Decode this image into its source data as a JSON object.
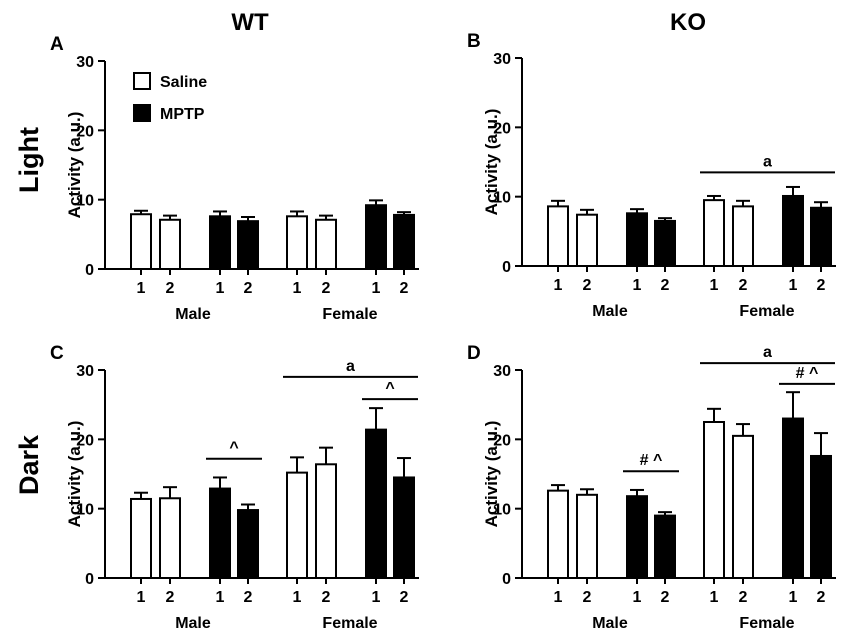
{
  "figure": {
    "column_titles": [
      "WT",
      "KO"
    ],
    "row_titles": [
      "Light",
      "Dark"
    ]
  },
  "legend": {
    "items": [
      {
        "label": "Saline",
        "color": "#ffffff"
      },
      {
        "label": "MPTP",
        "color": "#000000"
      }
    ]
  },
  "chart_data": [
    {
      "panel": "A",
      "type": "bar",
      "genotype": "WT",
      "phase": "Light",
      "ylabel": "Activity (a.u.)",
      "ylim": [
        0,
        30
      ],
      "yticks": [
        0,
        10,
        20,
        30
      ],
      "groups": [
        "Male",
        "Female"
      ],
      "bars": [
        {
          "sex": "Male",
          "treatment": "Saline",
          "day": "1",
          "value": 7.9,
          "err": 0.5
        },
        {
          "sex": "Male",
          "treatment": "Saline",
          "day": "2",
          "value": 7.1,
          "err": 0.6
        },
        {
          "sex": "Male",
          "treatment": "MPTP",
          "day": "1",
          "value": 7.6,
          "err": 0.7
        },
        {
          "sex": "Male",
          "treatment": "MPTP",
          "day": "2",
          "value": 6.9,
          "err": 0.6
        },
        {
          "sex": "Female",
          "treatment": "Saline",
          "day": "1",
          "value": 7.6,
          "err": 0.7
        },
        {
          "sex": "Female",
          "treatment": "Saline",
          "day": "2",
          "value": 7.1,
          "err": 0.6
        },
        {
          "sex": "Female",
          "treatment": "MPTP",
          "day": "1",
          "value": 9.2,
          "err": 0.7
        },
        {
          "sex": "Female",
          "treatment": "MPTP",
          "day": "2",
          "value": 7.8,
          "err": 0.4
        }
      ],
      "annotations": []
    },
    {
      "panel": "B",
      "type": "bar",
      "genotype": "KO",
      "phase": "Light",
      "ylabel": "Activity (a.u.)",
      "ylim": [
        0,
        30
      ],
      "yticks": [
        0,
        10,
        20,
        30
      ],
      "groups": [
        "Male",
        "Female"
      ],
      "bars": [
        {
          "sex": "Male",
          "treatment": "Saline",
          "day": "1",
          "value": 8.6,
          "err": 0.8
        },
        {
          "sex": "Male",
          "treatment": "Saline",
          "day": "2",
          "value": 7.4,
          "err": 0.7
        },
        {
          "sex": "Male",
          "treatment": "MPTP",
          "day": "1",
          "value": 7.6,
          "err": 0.6
        },
        {
          "sex": "Male",
          "treatment": "MPTP",
          "day": "2",
          "value": 6.5,
          "err": 0.4
        },
        {
          "sex": "Female",
          "treatment": "Saline",
          "day": "1",
          "value": 9.5,
          "err": 0.6
        },
        {
          "sex": "Female",
          "treatment": "Saline",
          "day": "2",
          "value": 8.6,
          "err": 0.8
        },
        {
          "sex": "Female",
          "treatment": "MPTP",
          "day": "1",
          "value": 10.1,
          "err": 1.3
        },
        {
          "sex": "Female",
          "treatment": "MPTP",
          "day": "2",
          "value": 8.4,
          "err": 0.8
        }
      ],
      "annotations": [
        {
          "label": "a",
          "from_bar": 4,
          "to_bar": 7,
          "y": 13.5
        }
      ]
    },
    {
      "panel": "C",
      "type": "bar",
      "genotype": "WT",
      "phase": "Dark",
      "ylabel": "Activity (a.u.)",
      "ylim": [
        0,
        30
      ],
      "yticks": [
        0,
        10,
        20,
        30
      ],
      "groups": [
        "Male",
        "Female"
      ],
      "bars": [
        {
          "sex": "Male",
          "treatment": "Saline",
          "day": "1",
          "value": 11.4,
          "err": 0.9
        },
        {
          "sex": "Male",
          "treatment": "Saline",
          "day": "2",
          "value": 11.5,
          "err": 1.6
        },
        {
          "sex": "Male",
          "treatment": "MPTP",
          "day": "1",
          "value": 12.9,
          "err": 1.6
        },
        {
          "sex": "Male",
          "treatment": "MPTP",
          "day": "2",
          "value": 9.8,
          "err": 0.8
        },
        {
          "sex": "Female",
          "treatment": "Saline",
          "day": "1",
          "value": 15.2,
          "err": 2.2
        },
        {
          "sex": "Female",
          "treatment": "Saline",
          "day": "2",
          "value": 16.4,
          "err": 2.4
        },
        {
          "sex": "Female",
          "treatment": "MPTP",
          "day": "1",
          "value": 21.4,
          "err": 3.1
        },
        {
          "sex": "Female",
          "treatment": "MPTP",
          "day": "2",
          "value": 14.5,
          "err": 2.8
        }
      ],
      "annotations": [
        {
          "label": "^",
          "from_bar": 2,
          "to_bar": 3,
          "y": 17.2
        },
        {
          "label": "a",
          "from_bar": 4,
          "to_bar": 7,
          "y": 29.0
        },
        {
          "label": "^",
          "from_bar": 6,
          "to_bar": 7,
          "y": 25.8
        }
      ]
    },
    {
      "panel": "D",
      "type": "bar",
      "genotype": "KO",
      "phase": "Dark",
      "ylabel": "Activity (a.u.)",
      "ylim": [
        0,
        30
      ],
      "yticks": [
        0,
        10,
        20,
        30
      ],
      "groups": [
        "Male",
        "Female"
      ],
      "bars": [
        {
          "sex": "Male",
          "treatment": "Saline",
          "day": "1",
          "value": 12.6,
          "err": 0.8
        },
        {
          "sex": "Male",
          "treatment": "Saline",
          "day": "2",
          "value": 12.0,
          "err": 0.8
        },
        {
          "sex": "Male",
          "treatment": "MPTP",
          "day": "1",
          "value": 11.8,
          "err": 0.9
        },
        {
          "sex": "Male",
          "treatment": "MPTP",
          "day": "2",
          "value": 9.0,
          "err": 0.5
        },
        {
          "sex": "Female",
          "treatment": "Saline",
          "day": "1",
          "value": 22.5,
          "err": 1.9
        },
        {
          "sex": "Female",
          "treatment": "Saline",
          "day": "2",
          "value": 20.5,
          "err": 1.7
        },
        {
          "sex": "Female",
          "treatment": "MPTP",
          "day": "1",
          "value": 23.0,
          "err": 3.8
        },
        {
          "sex": "Female",
          "treatment": "MPTP",
          "day": "2",
          "value": 17.6,
          "err": 3.3
        }
      ],
      "annotations": [
        {
          "label": "# ^",
          "from_bar": 2,
          "to_bar": 3,
          "y": 15.4
        },
        {
          "label": "a",
          "from_bar": 4,
          "to_bar": 7,
          "y": 31.0
        },
        {
          "label": "# ^",
          "from_bar": 6,
          "to_bar": 7,
          "y": 28.0
        }
      ]
    }
  ]
}
